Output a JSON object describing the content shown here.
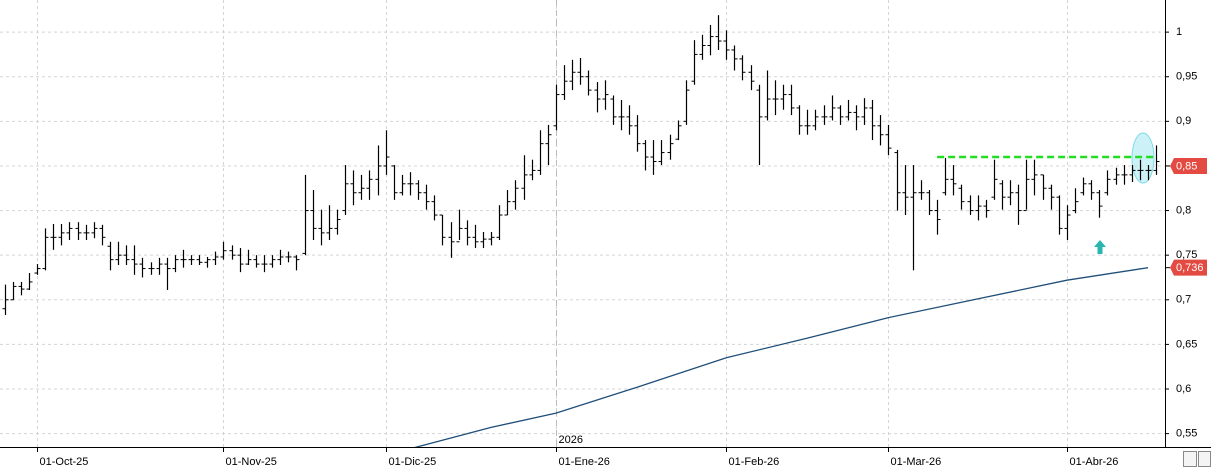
{
  "chart_data": {
    "type": "ohlc",
    "categories": [
      null,
      null,
      null,
      null,
      "01-Oct-25",
      null,
      null,
      null,
      null,
      null,
      null,
      null,
      null,
      null,
      null,
      null,
      null,
      null,
      null,
      null,
      null,
      null,
      null,
      null,
      null,
      null,
      null,
      "01-Nov-25",
      null,
      null,
      null,
      null,
      null,
      null,
      null,
      null,
      null,
      null,
      null,
      null,
      null,
      null,
      null,
      null,
      null,
      null,
      null,
      "01-Dic-25",
      null,
      null,
      null,
      null,
      null,
      null,
      null,
      null,
      null,
      null,
      null,
      null,
      null,
      null,
      null,
      null,
      null,
      null,
      null,
      null,
      "01-Ene-26",
      null,
      null,
      null,
      null,
      null,
      null,
      null,
      null,
      null,
      null,
      null,
      null,
      null,
      null,
      null,
      null,
      null,
      null,
      null,
      null,
      "01-Feb-26",
      null,
      null,
      null,
      null,
      null,
      null,
      null,
      null,
      null,
      null,
      null,
      null,
      null,
      null,
      null,
      null,
      null,
      null,
      null,
      "01-Mar-26",
      null,
      null,
      null,
      null,
      null,
      null,
      null,
      null,
      null,
      null,
      null,
      null,
      null,
      null,
      null,
      null,
      null,
      null,
      null,
      null,
      null,
      "01-Abr-26",
      null,
      null,
      null,
      null,
      null,
      null,
      null,
      null,
      null,
      null,
      null
    ],
    "open": [
      0.69,
      0.7,
      0.715,
      0.712,
      0.73,
      0.735,
      0.77,
      0.77,
      0.775,
      0.78,
      0.775,
      0.775,
      0.78,
      0.76,
      0.745,
      0.75,
      0.745,
      0.74,
      0.735,
      0.735,
      0.74,
      0.735,
      0.745,
      0.745,
      0.745,
      0.742,
      0.745,
      0.748,
      0.755,
      0.75,
      0.74,
      0.745,
      0.74,
      0.74,
      0.745,
      0.748,
      0.748,
      0.752,
      0.8,
      0.78,
      0.775,
      0.78,
      0.8,
      0.83,
      0.82,
      0.825,
      0.835,
      0.85,
      0.85,
      0.82,
      0.83,
      0.83,
      0.82,
      0.81,
      0.795,
      0.77,
      0.765,
      0.78,
      0.77,
      0.765,
      0.768,
      0.77,
      0.795,
      0.81,
      0.825,
      0.84,
      0.845,
      0.875,
      0.895,
      0.93,
      0.945,
      0.955,
      0.95,
      0.935,
      0.925,
      0.925,
      0.905,
      0.905,
      0.895,
      0.875,
      0.86,
      0.855,
      0.865,
      0.88,
      0.9,
      0.945,
      0.975,
      0.985,
      0.995,
      0.99,
      0.98,
      0.97,
      0.955,
      0.935,
      0.905,
      0.925,
      0.925,
      0.93,
      0.915,
      0.895,
      0.895,
      0.905,
      0.905,
      0.915,
      0.905,
      0.91,
      0.905,
      0.915,
      0.895,
      0.885,
      0.865,
      0.82,
      0.815,
      0.82,
      0.82,
      0.8,
      0.82,
      0.835,
      0.825,
      0.81,
      0.8,
      0.805,
      0.815,
      0.83,
      0.815,
      0.82,
      0.8,
      0.835,
      0.84,
      0.825,
      0.815,
      0.78,
      0.8,
      0.82,
      0.83,
      0.82,
      0.82,
      0.835,
      0.84,
      0.84,
      0.845,
      0.845,
      0.845
    ],
    "high": [
      0.717,
      0.72,
      0.72,
      0.73,
      0.74,
      0.78,
      0.785,
      0.785,
      0.787,
      0.787,
      0.784,
      0.787,
      0.784,
      0.765,
      0.765,
      0.761,
      0.761,
      0.747,
      0.742,
      0.747,
      0.747,
      0.75,
      0.756,
      0.75,
      0.75,
      0.748,
      0.754,
      0.765,
      0.761,
      0.758,
      0.756,
      0.75,
      0.75,
      0.75,
      0.756,
      0.754,
      0.75,
      0.84,
      0.823,
      0.801,
      0.806,
      0.801,
      0.851,
      0.845,
      0.84,
      0.845,
      0.873,
      0.89,
      0.851,
      0.84,
      0.843,
      0.834,
      0.829,
      0.817,
      0.795,
      0.787,
      0.801,
      0.789,
      0.784,
      0.776,
      0.776,
      0.806,
      0.823,
      0.834,
      0.862,
      0.857,
      0.89,
      0.896,
      0.941,
      0.963,
      0.969,
      0.971,
      0.957,
      0.944,
      0.946,
      0.929,
      0.924,
      0.918,
      0.907,
      0.879,
      0.879,
      0.879,
      0.885,
      0.901,
      0.946,
      0.991,
      0.997,
      1.008,
      1.019,
      1.002,
      0.985,
      0.974,
      0.963,
      0.941,
      0.957,
      0.946,
      0.941,
      0.941,
      0.918,
      0.913,
      0.913,
      0.918,
      0.929,
      0.918,
      0.924,
      0.918,
      0.926,
      0.924,
      0.907,
      0.896,
      0.868,
      0.851,
      0.851,
      0.834,
      0.823,
      0.812,
      0.859,
      0.851,
      0.829,
      0.817,
      0.817,
      0.812,
      0.857,
      0.834,
      0.834,
      0.829,
      0.857,
      0.857,
      0.84,
      0.829,
      0.817,
      0.806,
      0.825,
      0.837,
      0.834,
      0.823,
      0.845,
      0.848,
      0.851,
      0.851,
      0.857,
      0.851,
      0.873
    ],
    "low": [
      0.683,
      0.7,
      0.705,
      0.711,
      0.728,
      0.733,
      0.756,
      0.761,
      0.767,
      0.767,
      0.767,
      0.769,
      0.761,
      0.733,
      0.739,
      0.739,
      0.728,
      0.725,
      0.728,
      0.728,
      0.711,
      0.731,
      0.736,
      0.739,
      0.739,
      0.736,
      0.739,
      0.745,
      0.745,
      0.731,
      0.739,
      0.736,
      0.731,
      0.736,
      0.739,
      0.742,
      0.733,
      0.75,
      0.767,
      0.761,
      0.767,
      0.773,
      0.795,
      0.806,
      0.812,
      0.812,
      0.817,
      0.84,
      0.812,
      0.817,
      0.817,
      0.812,
      0.801,
      0.789,
      0.761,
      0.747,
      0.767,
      0.761,
      0.758,
      0.758,
      0.761,
      0.767,
      0.795,
      0.801,
      0.812,
      0.834,
      0.84,
      0.851,
      0.89,
      0.924,
      0.935,
      0.941,
      0.929,
      0.91,
      0.913,
      0.896,
      0.89,
      0.885,
      0.866,
      0.845,
      0.84,
      0.851,
      0.857,
      0.879,
      0.896,
      0.941,
      0.969,
      0.974,
      0.98,
      0.969,
      0.957,
      0.946,
      0.935,
      0.851,
      0.901,
      0.907,
      0.913,
      0.907,
      0.885,
      0.885,
      0.89,
      0.896,
      0.901,
      0.896,
      0.901,
      0.89,
      0.896,
      0.879,
      0.873,
      0.862,
      0.8,
      0.795,
      0.733,
      0.812,
      0.795,
      0.773,
      0.817,
      0.817,
      0.801,
      0.795,
      0.789,
      0.792,
      0.812,
      0.801,
      0.806,
      0.784,
      0.801,
      0.817,
      0.812,
      0.801,
      0.773,
      0.767,
      0.797,
      0.817,
      0.812,
      0.792,
      0.817,
      0.829,
      0.829,
      0.832,
      0.834,
      0.834,
      0.84
    ],
    "close": [
      0.7,
      0.715,
      0.712,
      0.72,
      0.735,
      0.77,
      0.77,
      0.775,
      0.78,
      0.775,
      0.775,
      0.78,
      0.77,
      0.745,
      0.75,
      0.745,
      0.74,
      0.735,
      0.735,
      0.74,
      0.735,
      0.745,
      0.745,
      0.745,
      0.742,
      0.745,
      0.748,
      0.755,
      0.75,
      0.74,
      0.745,
      0.74,
      0.74,
      0.745,
      0.748,
      0.748,
      0.745,
      0.8,
      0.78,
      0.775,
      0.78,
      0.79,
      0.83,
      0.82,
      0.825,
      0.835,
      0.85,
      0.86,
      0.82,
      0.83,
      0.83,
      0.82,
      0.81,
      0.795,
      0.77,
      0.765,
      0.78,
      0.77,
      0.765,
      0.768,
      0.77,
      0.795,
      0.81,
      0.825,
      0.84,
      0.845,
      0.875,
      0.885,
      0.93,
      0.945,
      0.955,
      0.95,
      0.935,
      0.925,
      0.93,
      0.905,
      0.905,
      0.895,
      0.875,
      0.86,
      0.855,
      0.865,
      0.875,
      0.895,
      0.935,
      0.975,
      0.985,
      0.995,
      0.99,
      0.98,
      0.97,
      0.955,
      0.945,
      0.905,
      0.925,
      0.925,
      0.93,
      0.915,
      0.895,
      0.895,
      0.905,
      0.905,
      0.915,
      0.905,
      0.91,
      0.905,
      0.915,
      0.895,
      0.885,
      0.87,
      0.82,
      0.815,
      0.82,
      0.82,
      0.8,
      0.79,
      0.835,
      0.83,
      0.81,
      0.8,
      0.805,
      0.8,
      0.835,
      0.815,
      0.82,
      0.8,
      0.835,
      0.84,
      0.825,
      0.815,
      0.78,
      0.795,
      0.81,
      0.83,
      0.82,
      0.805,
      0.835,
      0.84,
      0.84,
      0.845,
      0.845,
      0.845,
      0.855
    ],
    "color": "#000000",
    "xlim": [
      -0.56,
      143.1
    ],
    "ylim": [
      0.535,
      1.036
    ],
    "yticks": [
      1,
      {
        "value": 0.95,
        "label": "0,95"
      },
      {
        "value": 0.9,
        "label": "0,9"
      },
      {
        "value": 0.85,
        "label": "0,85"
      },
      {
        "value": 0.8,
        "label": "0,8"
      },
      {
        "value": 0.75,
        "label": "0,75"
      },
      {
        "value": 0.7,
        "label": "0,7"
      },
      {
        "value": 0.65,
        "label": "0,65"
      },
      {
        "value": 0.6,
        "label": "0,6"
      },
      {
        "value": 0.55,
        "label": "0,55"
      }
    ],
    "grid": true,
    "year_marker": {
      "index": 68,
      "label": "2026"
    },
    "moving_average": {
      "color": "#1f4e79",
      "x": [
        50,
        60,
        68,
        78,
        89,
        99,
        109,
        120,
        131,
        141
      ],
      "values": [
        0.533,
        0.557,
        0.573,
        0.602,
        0.635,
        0.657,
        0.68,
        0.701,
        0.722,
        0.736
      ]
    },
    "resistance": {
      "value": 0.86,
      "x": [
        115,
        142
      ],
      "color": "#22dd22"
    },
    "price_labels": [
      {
        "value": 0.85,
        "label": "0,85"
      },
      {
        "value": 0.736,
        "label": "0,736"
      }
    ],
    "price_label_color": "#e34a42"
  }
}
